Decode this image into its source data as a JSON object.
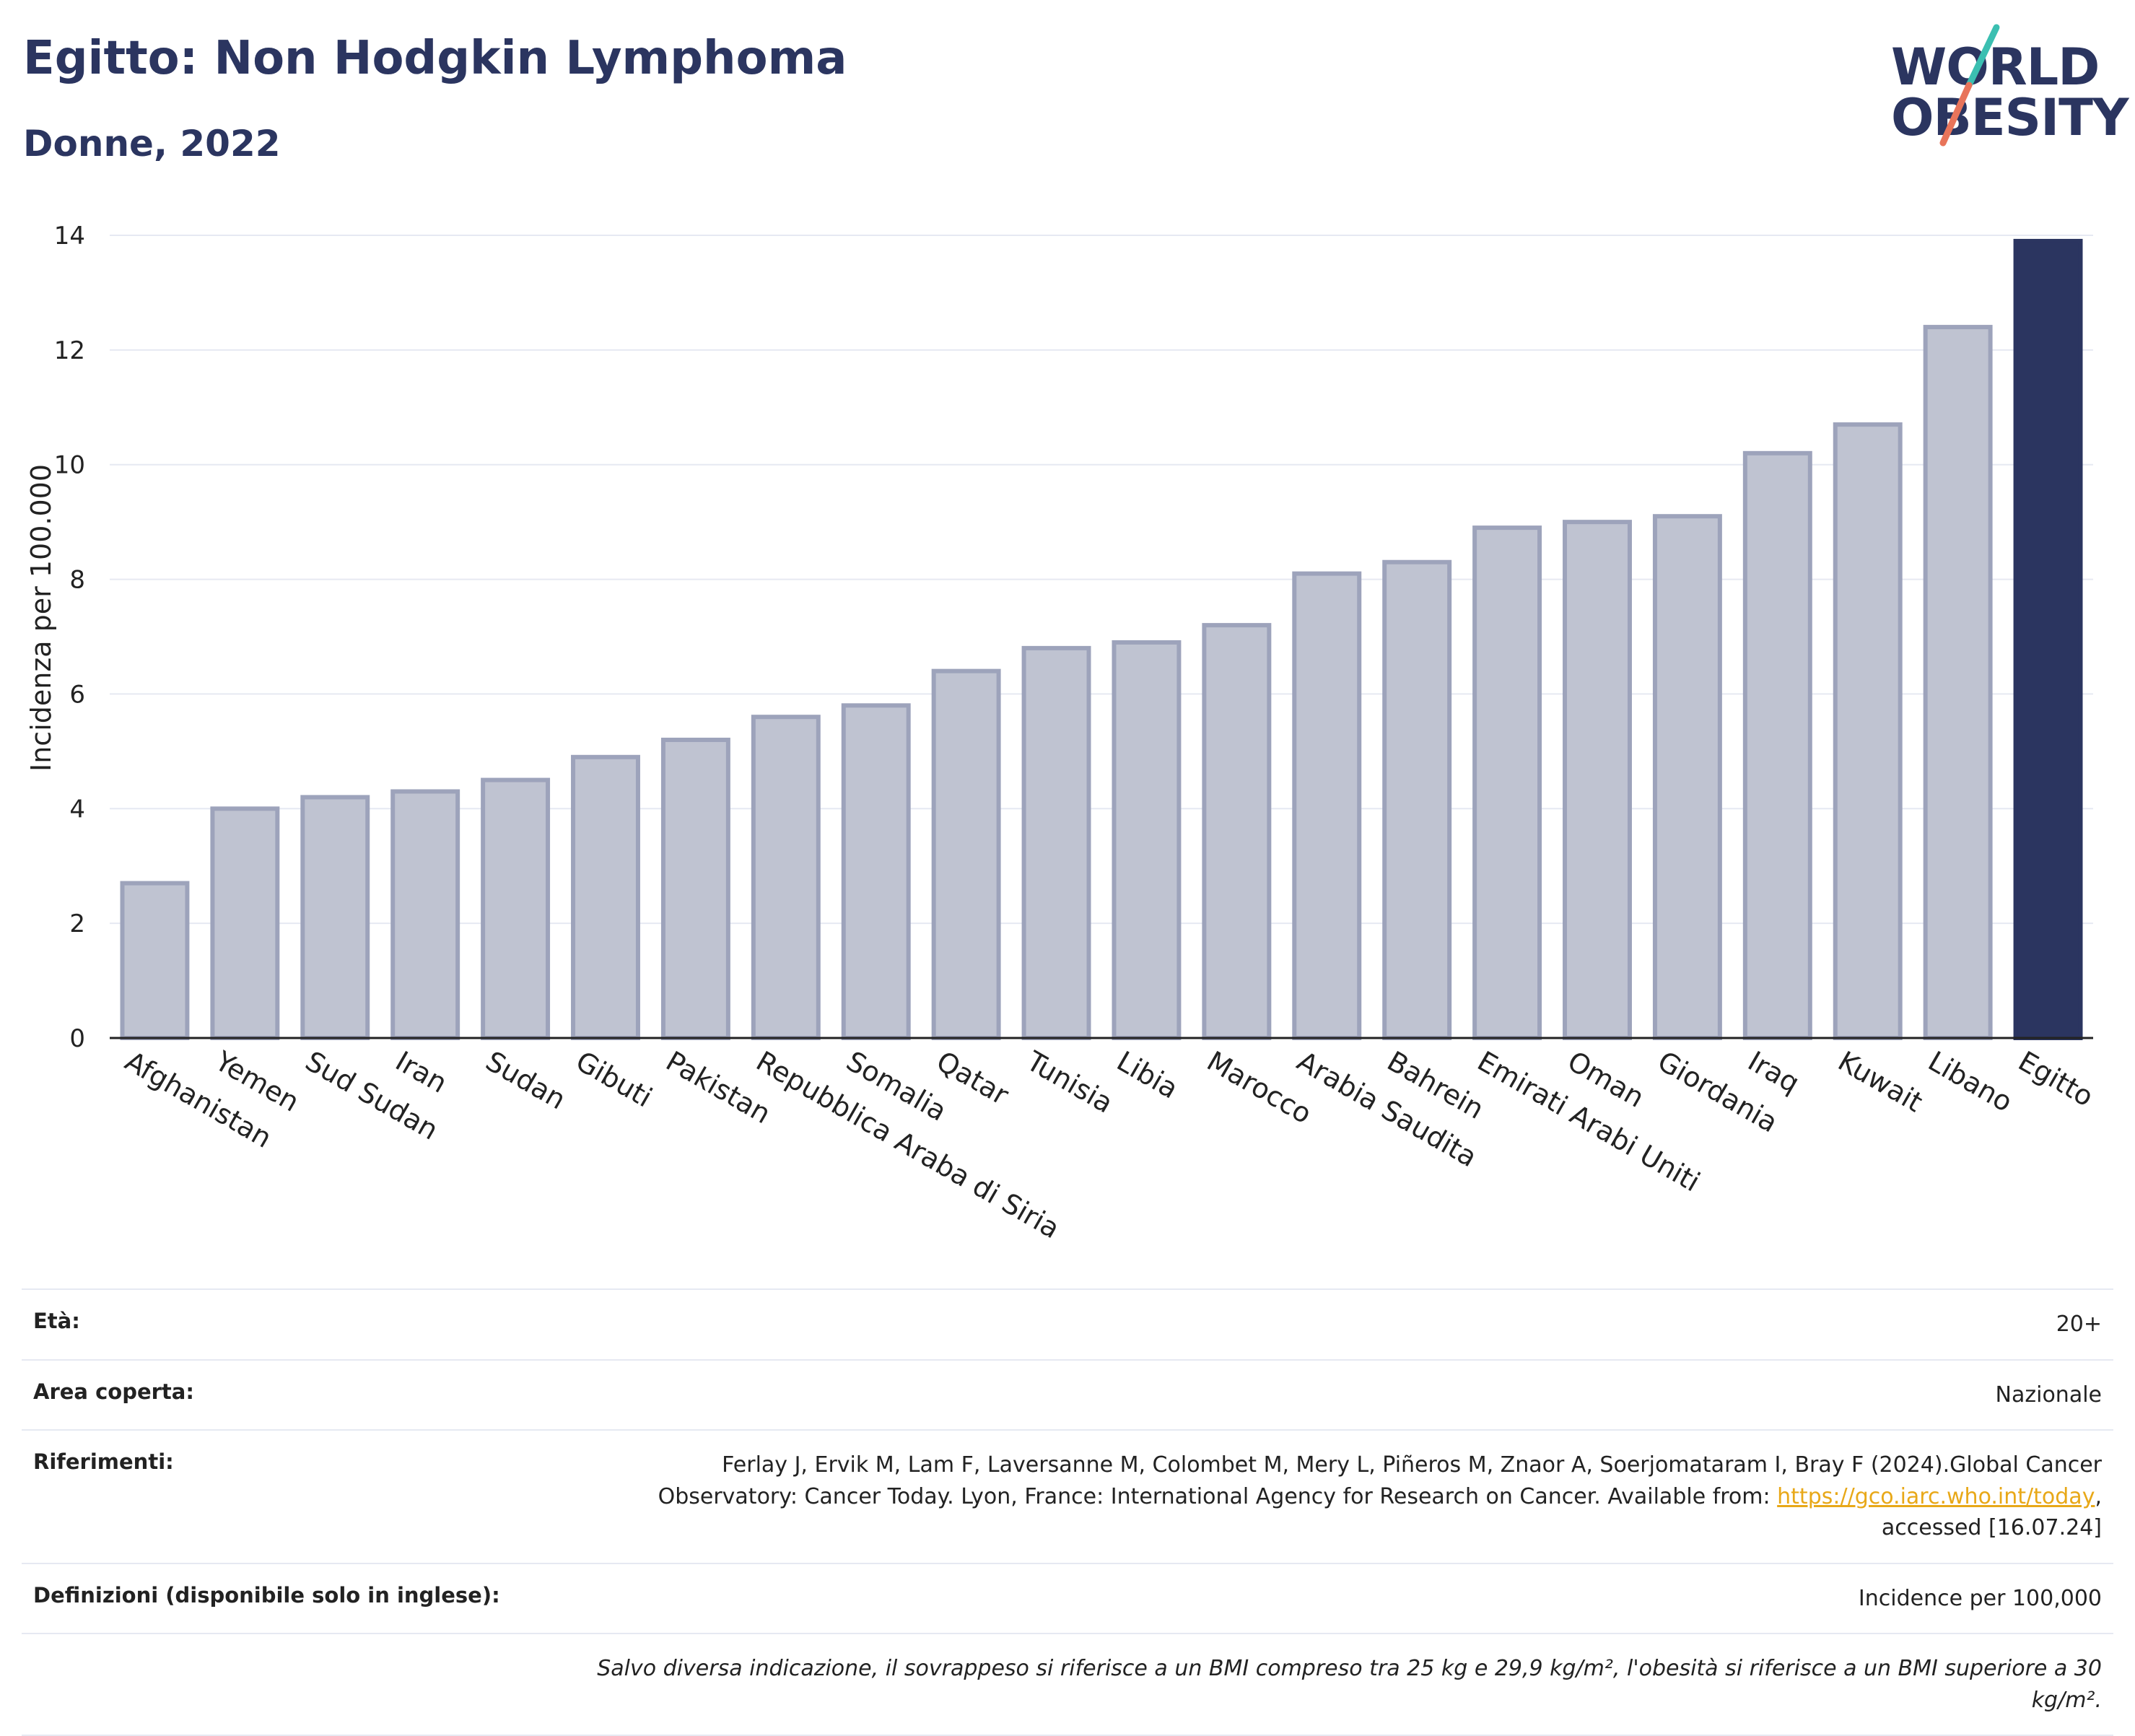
{
  "header": {
    "title": "Egitto: Non Hodgkin Lymphoma",
    "subtitle": "Donne, 2022"
  },
  "logo": {
    "line1": "WORLD",
    "line2": "OBESITY",
    "text_color": "#2b3560",
    "slash_colors": [
      "#3bbfb1",
      "#e8745a"
    ]
  },
  "chart_data": {
    "type": "bar",
    "categories": [
      "Afghanistan",
      "Yemen",
      "Sud Sudan",
      "Iran",
      "Sudan",
      "Gibuti",
      "Pakistan",
      "Repubblica Araba di Siria",
      "Somalia",
      "Qatar",
      "Tunisia",
      "Libia",
      "Marocco",
      "Arabia Saudita",
      "Bahrein",
      "Emirati Arabi Uniti",
      "Oman",
      "Giordania",
      "Iraq",
      "Kuwait",
      "Libano",
      "Egitto"
    ],
    "values": [
      2.7,
      4.0,
      4.2,
      4.3,
      4.5,
      4.9,
      5.2,
      5.6,
      5.8,
      6.4,
      6.8,
      6.9,
      7.2,
      8.1,
      8.3,
      8.9,
      9.0,
      9.1,
      10.2,
      10.7,
      12.4,
      13.9
    ],
    "highlight": "Egitto",
    "ylabel": "Incidenza per 100.000",
    "ylim": [
      0,
      14
    ],
    "yticks": [
      0,
      2,
      4,
      6,
      8,
      10,
      12,
      14
    ],
    "grid": true,
    "colors": {
      "bar": "#bfc3d1",
      "bar_border": "#9da3bb",
      "highlight": "#2b3560",
      "grid": "#e6e9f2"
    }
  },
  "info": {
    "rows": [
      {
        "label": "Età:",
        "value": "20+"
      },
      {
        "label": "Area coperta:",
        "value": "Nazionale"
      },
      {
        "label": "Riferimenti:",
        "value_line1": "Ferlay J, Ervik M, Lam F, Laversanne M, Colombet M, Mery L, Piñeros M, Znaor A, Soerjomataram I, Bray F (2024).Global Cancer",
        "value_line2_pre": "Observatory: Cancer Today. Lyon, France: International Agency for Research on Cancer. Available from: ",
        "link": "https://gco.iarc.who.int/today",
        "value_line2_post": ",",
        "value_line3": "accessed [16.07.24]"
      },
      {
        "label": "Definizioni (disponibile solo in inglese):",
        "value": "Incidence per 100,000"
      }
    ],
    "note": "Salvo diversa indicazione, il sovrappeso si riferisce a un BMI compreso tra 25 kg e 29,9 kg/m², l'obesità si riferisce a un BMI superiore a 30 kg/m²."
  }
}
